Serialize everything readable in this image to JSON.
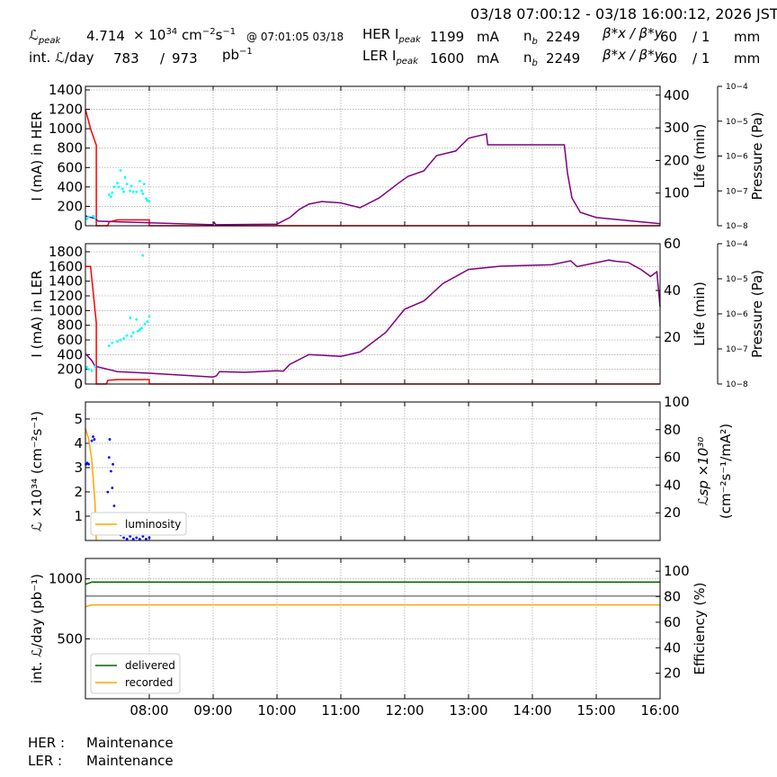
{
  "header": {
    "range": "03/18 07:00:12 - 03/18 16:00:12, 2026 JST",
    "lpeak_label": "ℒ",
    "lpeak_sub": "peak",
    "lpeak_value": "4.714",
    "lpeak_unit_times": "× 10",
    "lpeak_unit_exp": "34",
    "lpeak_unit_cm": " cm",
    "lpeak_unit_cm_exp": "−2",
    "lpeak_unit_s": "s",
    "lpeak_unit_s_exp": "−1",
    "lpeak_time": "@ 07:01:05 03/18",
    "intl_label": "int. ℒ/day",
    "intl_recorded": "783",
    "intl_sep": "/",
    "intl_delivered": "973",
    "intl_unit": "pb",
    "intl_unit_exp": "−1",
    "her": {
      "label": "HER I",
      "sub": "peak",
      "current": "1199",
      "unit": "mA",
      "nb_label": "n",
      "nb_sub": "b",
      "nb": "2249",
      "beta_label": "β*x / β*y",
      "betax": "60",
      "betay": "/ 1",
      "beta_unit": "mm"
    },
    "ler": {
      "label": "LER I",
      "sub": "peak",
      "current": "1600",
      "unit": "mA",
      "nb_label": "n",
      "nb_sub": "b",
      "nb": "2249",
      "beta_label": "β*x / β*y",
      "betax": "60",
      "betay": "/ 1",
      "beta_unit": "mm"
    }
  },
  "footer": {
    "her_label": "HER :",
    "her_status": "Maintenance",
    "ler_label": "LER :",
    "ler_status": "Maintenance"
  },
  "colors": {
    "current": "#ff0000",
    "life": "#800080",
    "pressure": "#00ffff",
    "lumi": "#ffa500",
    "lsp": "#0000ff",
    "delivered": "#006400",
    "efficiency": "#808080",
    "recorded": "#ffa500"
  },
  "chart_data": [
    {
      "type": "line",
      "name": "her",
      "xlim": [
        7,
        16
      ],
      "xticks": [
        8,
        9,
        10,
        11,
        12,
        13,
        14,
        15,
        16
      ],
      "xticklabels": [
        "08:00",
        "09:00",
        "10:00",
        "11:00",
        "12:00",
        "13:00",
        "14:00",
        "15:00",
        "16:00"
      ],
      "ylabel": "I (mA) in HER",
      "ylim": [
        0,
        1437
      ],
      "yticks": [
        0,
        200,
        400,
        600,
        800,
        1000,
        1200,
        1400
      ],
      "y2label": "Life (min)",
      "y2lim": [
        0,
        427
      ],
      "y2ticks": [
        100,
        200,
        300,
        400
      ],
      "y3label": "Pressure (Pa)",
      "y3ticklabels": [
        "10−8",
        "10−7",
        "10−6",
        "10−5",
        "10−4"
      ],
      "series": [
        {
          "name": "current",
          "axis": "left",
          "color": "#ff0000",
          "points": [
            [
              7,
              1200
            ],
            [
              7.08,
              1000
            ],
            [
              7.17,
              830
            ],
            [
              7.17,
              0
            ],
            [
              7.35,
              0
            ],
            [
              7.37,
              40
            ],
            [
              7.5,
              60
            ],
            [
              8,
              60
            ],
            [
              8,
              0
            ],
            [
              16,
              0
            ]
          ]
        },
        {
          "name": "life",
          "axis": "right",
          "color": "#800080",
          "points": [
            [
              7,
              30
            ],
            [
              7.15,
              22
            ],
            [
              7.2,
              14
            ],
            [
              8,
              9
            ],
            [
              9,
              3
            ],
            [
              9.02,
              10
            ],
            [
              9.04,
              3
            ],
            [
              10,
              5
            ],
            [
              10.2,
              25
            ],
            [
              10.35,
              50
            ],
            [
              10.5,
              66
            ],
            [
              10.7,
              74
            ],
            [
              11,
              70
            ],
            [
              11.3,
              55
            ],
            [
              11.6,
              85
            ],
            [
              11.9,
              130
            ],
            [
              12.05,
              151
            ],
            [
              12.3,
              168
            ],
            [
              12.5,
              215
            ],
            [
              12.8,
              229
            ],
            [
              13,
              268
            ],
            [
              13.28,
              281
            ],
            [
              13.3,
              248
            ],
            [
              14.5,
              248
            ],
            [
              14.55,
              160
            ],
            [
              14.62,
              85
            ],
            [
              14.75,
              41
            ],
            [
              15,
              25
            ],
            [
              16,
              6
            ]
          ]
        },
        {
          "name": "pressure",
          "axis": "left",
          "color": "#00ffff",
          "scatter": true,
          "points": [
            [
              7.02,
              70
            ],
            [
              7.05,
              90
            ],
            [
              7.12,
              100
            ],
            [
              7.15,
              80
            ],
            [
              7.37,
              320
            ],
            [
              7.4,
              300
            ],
            [
              7.42,
              340
            ],
            [
              7.45,
              400
            ],
            [
              7.5,
              440
            ],
            [
              7.52,
              400
            ],
            [
              7.55,
              570
            ],
            [
              7.58,
              380
            ],
            [
              7.6,
              350
            ],
            [
              7.62,
              500
            ],
            [
              7.65,
              430
            ],
            [
              7.7,
              360
            ],
            [
              7.72,
              410
            ],
            [
              7.75,
              350
            ],
            [
              7.8,
              350
            ],
            [
              7.85,
              460
            ],
            [
              7.88,
              360
            ],
            [
              7.9,
              330
            ],
            [
              7.92,
              430
            ],
            [
              7.95,
              280
            ],
            [
              7.97,
              260
            ],
            [
              8,
              250
            ]
          ]
        }
      ]
    },
    {
      "type": "line",
      "name": "ler",
      "xlim": [
        7,
        16
      ],
      "ylabel": "I (mA) in LER",
      "ylim": [
        0,
        1910
      ],
      "yticks": [
        0,
        200,
        400,
        600,
        800,
        1000,
        1200,
        1400,
        1600,
        1800
      ],
      "y2label": "Life (min)",
      "y2lim": [
        0,
        60
      ],
      "y2ticks": [
        20,
        40,
        60
      ],
      "y3label": "Pressure (Pa)",
      "y3ticklabels": [
        "10−8",
        "10−7",
        "10−6",
        "10−5",
        "10−4"
      ],
      "series": [
        {
          "name": "current",
          "axis": "left",
          "color": "#ff0000",
          "points": [
            [
              7,
              1600
            ],
            [
              7.08,
              1600
            ],
            [
              7.17,
              830
            ],
            [
              7.17,
              0
            ],
            [
              7.33,
              0
            ],
            [
              7.35,
              50
            ],
            [
              7.5,
              60
            ],
            [
              8,
              60
            ],
            [
              8,
              0
            ],
            [
              16,
              0
            ]
          ]
        },
        {
          "name": "life",
          "axis": "right",
          "color": "#800080",
          "points": [
            [
              7,
              13
            ],
            [
              7.1,
              10
            ],
            [
              7.15,
              7.6
            ],
            [
              7.5,
              5.3
            ],
            [
              8,
              4.6
            ],
            [
              9,
              3
            ],
            [
              9.05,
              3.5
            ],
            [
              9.1,
              5.3
            ],
            [
              9.5,
              5
            ],
            [
              10,
              5.7
            ],
            [
              10.1,
              5.5
            ],
            [
              10.2,
              8.4
            ],
            [
              10.5,
              12.6
            ],
            [
              11,
              11.8
            ],
            [
              11.3,
              13.7
            ],
            [
              11.7,
              22
            ],
            [
              12,
              32
            ],
            [
              12.3,
              35.5
            ],
            [
              12.6,
              43
            ],
            [
              13,
              49
            ],
            [
              13.5,
              50.4
            ],
            [
              14.3,
              51
            ],
            [
              14.6,
              52.7
            ],
            [
              14.7,
              50.2
            ],
            [
              15.2,
              53
            ],
            [
              15.3,
              52.5
            ],
            [
              15.5,
              52
            ],
            [
              15.7,
              49
            ],
            [
              15.85,
              46
            ],
            [
              15.95,
              48
            ],
            [
              16,
              33
            ]
          ]
        },
        {
          "name": "pressure",
          "axis": "left",
          "color": "#00ffff",
          "scatter": true,
          "points": [
            [
              7.02,
              230
            ],
            [
              7.05,
              200
            ],
            [
              7.1,
              180
            ],
            [
              7.15,
              240
            ],
            [
              7.37,
              520
            ],
            [
              7.42,
              560
            ],
            [
              7.5,
              580
            ],
            [
              7.55,
              600
            ],
            [
              7.6,
              620
            ],
            [
              7.65,
              660
            ],
            [
              7.7,
              900
            ],
            [
              7.72,
              650
            ],
            [
              7.75,
              700
            ],
            [
              7.8,
              880
            ],
            [
              7.82,
              720
            ],
            [
              7.85,
              740
            ],
            [
              7.88,
              760
            ],
            [
              7.9,
              1750
            ],
            [
              7.93,
              820
            ],
            [
              7.97,
              850
            ],
            [
              8,
              920
            ]
          ]
        }
      ]
    },
    {
      "type": "line",
      "name": "luminosity",
      "xlim": [
        7,
        16
      ],
      "ylabel": "ℒ ×10³⁴ (cm⁻²s⁻¹)",
      "ylim": [
        0,
        5.7
      ],
      "yticks": [
        1,
        2,
        3,
        4,
        5
      ],
      "y2label_1": "ℒsp ×10³⁰",
      "y2label_2": "(cm⁻²s⁻¹/mA²)",
      "y2lim": [
        0,
        100
      ],
      "y2ticks": [
        20,
        40,
        60,
        80,
        100
      ],
      "legend": [
        "luminosity"
      ],
      "legend_loc": "lower-left",
      "series": [
        {
          "name": "luminosity",
          "axis": "left",
          "color": "#ffa500",
          "points": [
            [
              7,
              4.6
            ],
            [
              7.05,
              4.2
            ],
            [
              7.1,
              3.3
            ],
            [
              7.15,
              1.5
            ],
            [
              7.17,
              0
            ]
          ]
        },
        {
          "name": "specific luminosity",
          "axis": "right",
          "color": "#0000ff",
          "scatter": true,
          "points": [
            [
              7.01,
              55
            ],
            [
              7.03,
              56
            ],
            [
              7.05,
              55
            ],
            [
              7.1,
              72
            ],
            [
              7.12,
              75
            ],
            [
              7.14,
              73
            ],
            [
              7.35,
              35
            ],
            [
              7.37,
              60
            ],
            [
              7.38,
              73
            ],
            [
              7.4,
              50
            ],
            [
              7.42,
              38
            ],
            [
              7.43,
              55
            ],
            [
              7.45,
              25
            ],
            [
              7.5,
              8
            ],
            [
              7.55,
              4
            ],
            [
              7.6,
              2
            ],
            [
              7.65,
              1
            ],
            [
              7.7,
              3
            ],
            [
              7.75,
              1
            ],
            [
              7.8,
              2
            ],
            [
              7.85,
              1
            ],
            [
              7.9,
              3
            ],
            [
              7.95,
              1
            ],
            [
              8,
              2
            ]
          ]
        }
      ]
    },
    {
      "type": "line",
      "name": "integrated",
      "xlim": [
        7,
        16
      ],
      "ylabel": "int. ℒ/day (pb⁻¹)",
      "ylim": [
        0,
        1170
      ],
      "yticks": [
        500,
        1000
      ],
      "y2label": "Efficiency (%)",
      "y2lim": [
        0,
        110
      ],
      "y2ticks": [
        20,
        40,
        60,
        80,
        100
      ],
      "legend": [
        "delivered",
        "recorded"
      ],
      "legend_loc": "lower-left",
      "series": [
        {
          "name": "delivered",
          "axis": "left",
          "color": "#006400",
          "points": [
            [
              7,
              955
            ],
            [
              7.1,
              973
            ],
            [
              16,
              973
            ]
          ]
        },
        {
          "name": "efficiency",
          "axis": "right",
          "color": "#808080",
          "points": [
            [
              7,
              80.5
            ],
            [
              16,
              80.5
            ]
          ]
        },
        {
          "name": "recorded",
          "axis": "left",
          "color": "#ffa500",
          "points": [
            [
              7,
              768
            ],
            [
              7.1,
              783
            ],
            [
              16,
              783
            ]
          ]
        }
      ]
    }
  ]
}
